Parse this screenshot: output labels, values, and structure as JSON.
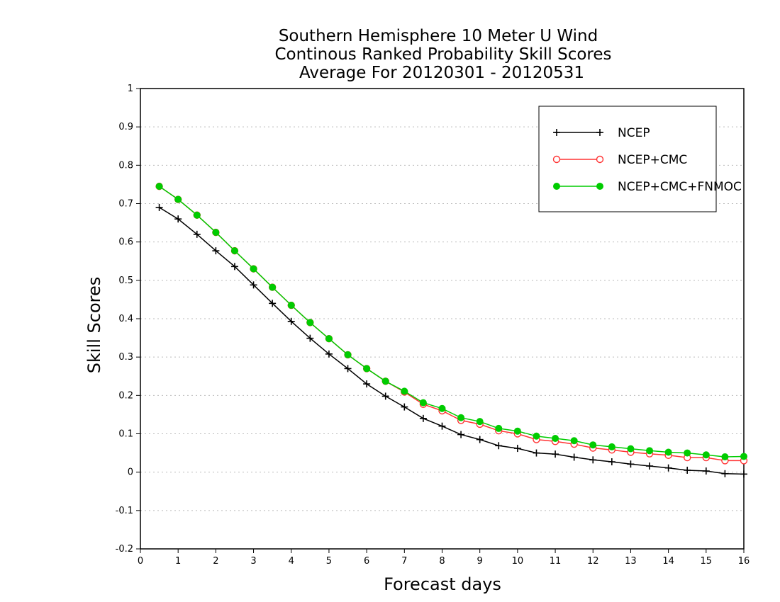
{
  "chart_data": {
    "type": "line",
    "title": [
      "Southern Hemisphere 10 Meter U Wind",
      "Continous Ranked Probability Skill Scores",
      "Average For 20120301 - 20120531"
    ],
    "xlabel": "Forecast days",
    "ylabel": "Skill Scores",
    "xlim": [
      0,
      16
    ],
    "ylim": [
      -0.2,
      1
    ],
    "xticks": [
      0,
      1,
      2,
      3,
      4,
      5,
      6,
      7,
      8,
      9,
      10,
      11,
      12,
      13,
      14,
      15,
      16
    ],
    "xtick_labels": [
      "0",
      "1",
      "2",
      "3",
      "4",
      "5",
      "6",
      "7",
      "8",
      "9",
      "10",
      "11",
      "12",
      "13",
      "14",
      "15",
      "16"
    ],
    "yticks": [
      -0.2,
      -0.1,
      0,
      0.1,
      0.2,
      0.3,
      0.4,
      0.5,
      0.6,
      0.7,
      0.8,
      0.9,
      1
    ],
    "ytick_labels": [
      "-0.2",
      "-0.1",
      "0",
      "0.1",
      "0.2",
      "0.3",
      "0.4",
      "0.5",
      "0.6",
      "0.7",
      "0.8",
      "0.9",
      "1"
    ],
    "grid": "horizontal dotted",
    "legend_position": "top-right",
    "x": [
      0.5,
      1,
      1.5,
      2,
      2.5,
      3,
      3.5,
      4,
      4.5,
      5,
      5.5,
      6,
      6.5,
      7,
      7.5,
      8,
      8.5,
      9,
      9.5,
      10,
      10.5,
      11,
      11.5,
      12,
      12.5,
      13,
      13.5,
      14,
      14.5,
      15,
      15.5,
      16
    ],
    "series": [
      {
        "name": "NCEP",
        "color": "#000000",
        "marker": "plus",
        "values": [
          0.69,
          0.66,
          0.62,
          0.577,
          0.536,
          0.488,
          0.44,
          0.393,
          0.349,
          0.308,
          0.27,
          0.23,
          0.198,
          0.17,
          0.14,
          0.12,
          0.098,
          0.085,
          0.069,
          0.062,
          0.05,
          0.047,
          0.039,
          0.032,
          0.027,
          0.021,
          0.016,
          0.011,
          0.005,
          0.003,
          -0.004,
          -0.005
        ]
      },
      {
        "name": "NCEP+CMC",
        "color": "#ff3333",
        "marker": "open-circle",
        "values": [
          0.745,
          0.711,
          0.67,
          0.625,
          0.577,
          0.53,
          0.482,
          0.435,
          0.39,
          0.348,
          0.306,
          0.27,
          0.237,
          0.209,
          0.177,
          0.16,
          0.135,
          0.125,
          0.108,
          0.1,
          0.085,
          0.08,
          0.073,
          0.063,
          0.058,
          0.052,
          0.048,
          0.044,
          0.038,
          0.038,
          0.03,
          0.03
        ]
      },
      {
        "name": "NCEP+CMC+FNMOC",
        "color": "#00cc00",
        "marker": "filled-circle",
        "values": [
          0.745,
          0.711,
          0.67,
          0.625,
          0.577,
          0.53,
          0.482,
          0.435,
          0.39,
          0.348,
          0.306,
          0.27,
          0.237,
          0.211,
          0.181,
          0.166,
          0.142,
          0.132,
          0.114,
          0.107,
          0.094,
          0.088,
          0.082,
          0.071,
          0.066,
          0.061,
          0.056,
          0.052,
          0.05,
          0.045,
          0.04,
          0.041
        ]
      }
    ]
  }
}
